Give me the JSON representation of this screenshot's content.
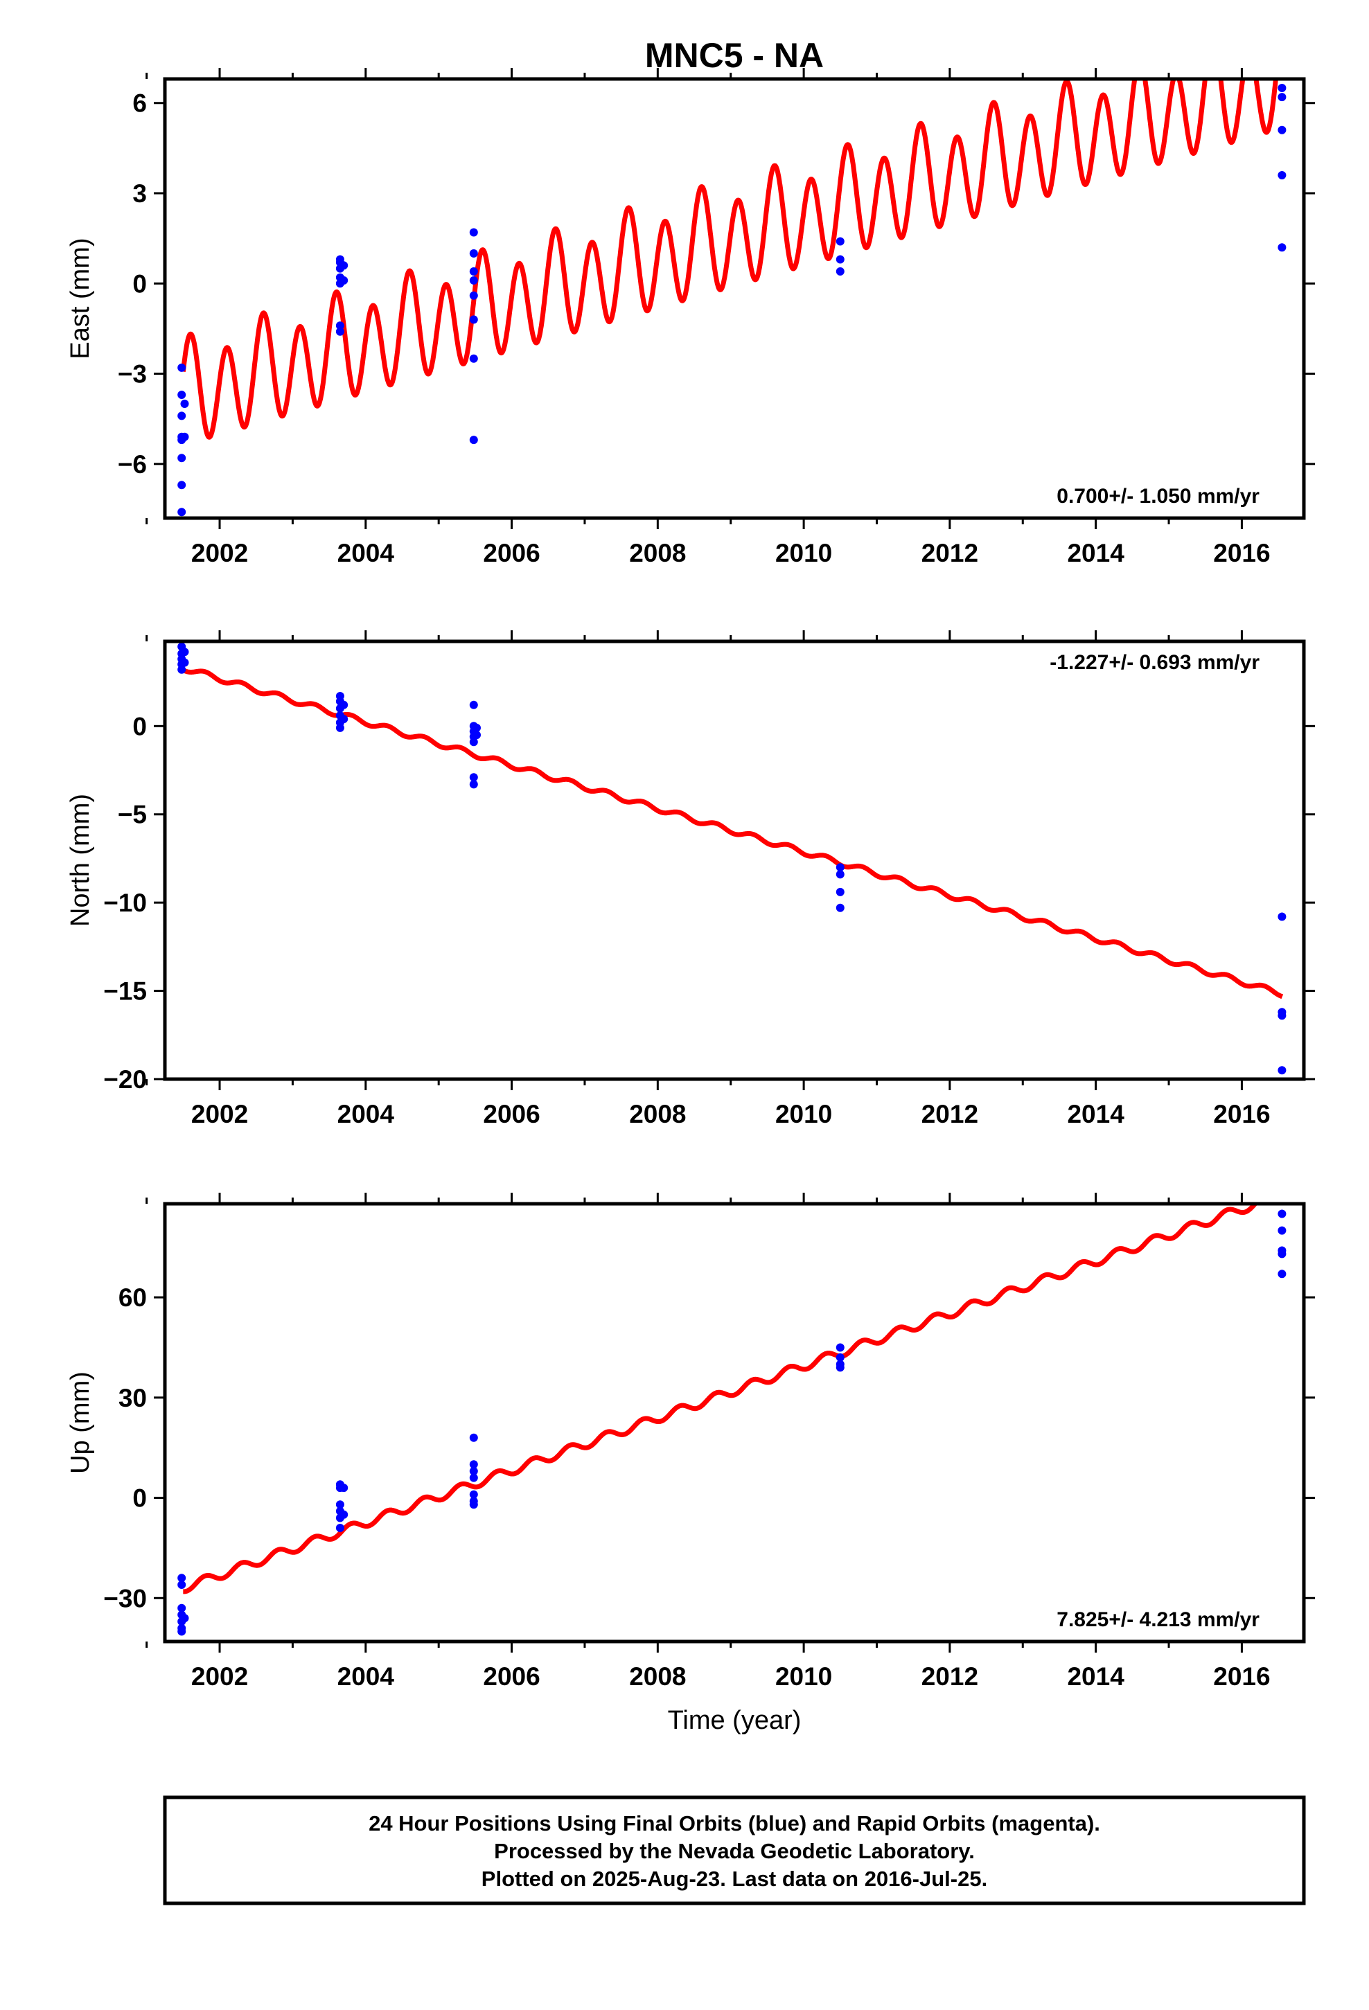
{
  "chart_data": {
    "type": "scatter",
    "title": "MNC5 - NA",
    "xlabel": "Time (year)",
    "xlim": [
      2001.25,
      2016.85
    ],
    "x_ticks": [
      2002,
      2004,
      2006,
      2008,
      2010,
      2012,
      2014,
      2016
    ],
    "x_tick_labels": [
      "2002",
      "2004",
      "2006",
      "2008",
      "2010",
      "2012",
      "2014",
      "2016"
    ],
    "grid": false,
    "legend": "none",
    "colors": {
      "final_orbits": "#0000ff",
      "model": "#ff0000",
      "frame": "#000000"
    },
    "panels": [
      {
        "name": "east",
        "ylabel": "East (mm)",
        "ylim": [
          -7.8,
          6.8
        ],
        "y_ticks": [
          -6,
          -3,
          0,
          3,
          6
        ],
        "y_tick_labels": [
          "−6",
          "−3",
          "0",
          "3",
          "6"
        ],
        "rate_label": "0.700+/- 1.050 mm/yr",
        "rate_position": "bottom-right",
        "model": {
          "offset": -3.75,
          "slope": 0.7,
          "ref_year": 2001.5,
          "amp": 1.6,
          "annual_amp": 0.4,
          "phase_year": 2001.6
        },
        "points": [
          [
            2001.48,
            -2.8
          ],
          [
            2001.48,
            -3.7
          ],
          [
            2001.48,
            -4.4
          ],
          [
            2001.48,
            -5.1
          ],
          [
            2001.48,
            -5.2
          ],
          [
            2001.48,
            -5.8
          ],
          [
            2001.48,
            -6.7
          ],
          [
            2001.48,
            -7.6
          ],
          [
            2001.52,
            -4.0
          ],
          [
            2001.52,
            -5.1
          ],
          [
            2003.65,
            0.8
          ],
          [
            2003.65,
            0.7
          ],
          [
            2003.65,
            0.5
          ],
          [
            2003.65,
            0.2
          ],
          [
            2003.65,
            0.0
          ],
          [
            2003.65,
            -1.4
          ],
          [
            2003.65,
            -1.6
          ],
          [
            2003.7,
            0.6
          ],
          [
            2003.7,
            0.1
          ],
          [
            2005.48,
            1.7
          ],
          [
            2005.48,
            1.0
          ],
          [
            2005.48,
            0.4
          ],
          [
            2005.48,
            0.1
          ],
          [
            2005.48,
            -0.4
          ],
          [
            2005.48,
            -1.2
          ],
          [
            2005.48,
            -2.5
          ],
          [
            2005.48,
            -5.2
          ],
          [
            2010.5,
            1.4
          ],
          [
            2010.5,
            0.8
          ],
          [
            2010.5,
            0.4
          ],
          [
            2016.55,
            6.5
          ],
          [
            2016.55,
            6.2
          ],
          [
            2016.55,
            5.1
          ],
          [
            2016.55,
            3.6
          ],
          [
            2016.55,
            1.2
          ]
        ]
      },
      {
        "name": "north",
        "ylabel": "North (mm)",
        "ylim": [
          -20,
          4.8
        ],
        "y_ticks": [
          -20,
          -15,
          -10,
          -5,
          0
        ],
        "y_tick_labels": [
          "−20",
          "−15",
          "−10",
          "−5",
          "0"
        ],
        "rate_label": "-1.227+/- 0.693 mm/yr",
        "rate_position": "top-right",
        "model": {
          "offset": 3.3,
          "slope": -1.227,
          "ref_year": 2001.5,
          "amp": 0.15,
          "annual_amp": 0.0,
          "phase_year": 2001.8
        },
        "points": [
          [
            2001.48,
            4.5
          ],
          [
            2001.48,
            4.1
          ],
          [
            2001.48,
            3.8
          ],
          [
            2001.48,
            3.5
          ],
          [
            2001.48,
            3.2
          ],
          [
            2001.52,
            4.2
          ],
          [
            2001.52,
            3.6
          ],
          [
            2003.65,
            1.7
          ],
          [
            2003.65,
            1.4
          ],
          [
            2003.65,
            1.0
          ],
          [
            2003.65,
            0.6
          ],
          [
            2003.65,
            0.2
          ],
          [
            2003.65,
            -0.1
          ],
          [
            2003.7,
            1.2
          ],
          [
            2003.7,
            0.4
          ],
          [
            2005.48,
            1.2
          ],
          [
            2005.48,
            0.0
          ],
          [
            2005.48,
            -0.3
          ],
          [
            2005.48,
            -0.6
          ],
          [
            2005.48,
            -0.9
          ],
          [
            2005.48,
            -2.9
          ],
          [
            2005.48,
            -3.3
          ],
          [
            2005.52,
            -0.1
          ],
          [
            2005.52,
            -0.5
          ],
          [
            2010.5,
            -8.0
          ],
          [
            2010.5,
            -8.4
          ],
          [
            2010.5,
            -9.4
          ],
          [
            2010.5,
            -10.3
          ],
          [
            2016.55,
            -10.8
          ],
          [
            2016.55,
            -16.2
          ],
          [
            2016.55,
            -16.4
          ],
          [
            2016.55,
            -19.5
          ]
        ]
      },
      {
        "name": "up",
        "ylabel": "Up (mm)",
        "ylim": [
          -43,
          88
        ],
        "y_ticks": [
          -30,
          0,
          30,
          60
        ],
        "y_tick_labels": [
          "−30",
          "0",
          "30",
          "60"
        ],
        "rate_label": "7.825+/- 4.213 mm/yr",
        "rate_position": "bottom-right",
        "model": {
          "offset": -27,
          "slope": 7.825,
          "ref_year": 2001.5,
          "amp": 1.3,
          "annual_amp": 0.0,
          "phase_year": 2001.8
        },
        "points": [
          [
            2001.48,
            -24
          ],
          [
            2001.48,
            -26
          ],
          [
            2001.48,
            -33
          ],
          [
            2001.48,
            -35
          ],
          [
            2001.48,
            -37
          ],
          [
            2001.48,
            -39
          ],
          [
            2001.48,
            -40
          ],
          [
            2001.52,
            -36
          ],
          [
            2003.65,
            4
          ],
          [
            2003.65,
            3
          ],
          [
            2003.65,
            -2
          ],
          [
            2003.65,
            -4
          ],
          [
            2003.65,
            -6
          ],
          [
            2003.65,
            -9
          ],
          [
            2003.7,
            3
          ],
          [
            2003.7,
            -5
          ],
          [
            2005.48,
            18
          ],
          [
            2005.48,
            10
          ],
          [
            2005.48,
            8
          ],
          [
            2005.48,
            6
          ],
          [
            2005.48,
            1
          ],
          [
            2005.48,
            -1
          ],
          [
            2005.48,
            -2
          ],
          [
            2010.5,
            45
          ],
          [
            2010.5,
            42
          ],
          [
            2010.5,
            40
          ],
          [
            2010.5,
            39
          ],
          [
            2016.55,
            85
          ],
          [
            2016.55,
            80
          ],
          [
            2016.55,
            74
          ],
          [
            2016.55,
            73
          ],
          [
            2016.55,
            67
          ]
        ]
      }
    ],
    "footer_lines": [
      "24 Hour Positions Using Final Orbits (blue) and Rapid Orbits (magenta).",
      "Processed by the Nevada Geodetic Laboratory.",
      "Plotted on 2025-Aug-23. Last data on 2016-Jul-25."
    ]
  }
}
